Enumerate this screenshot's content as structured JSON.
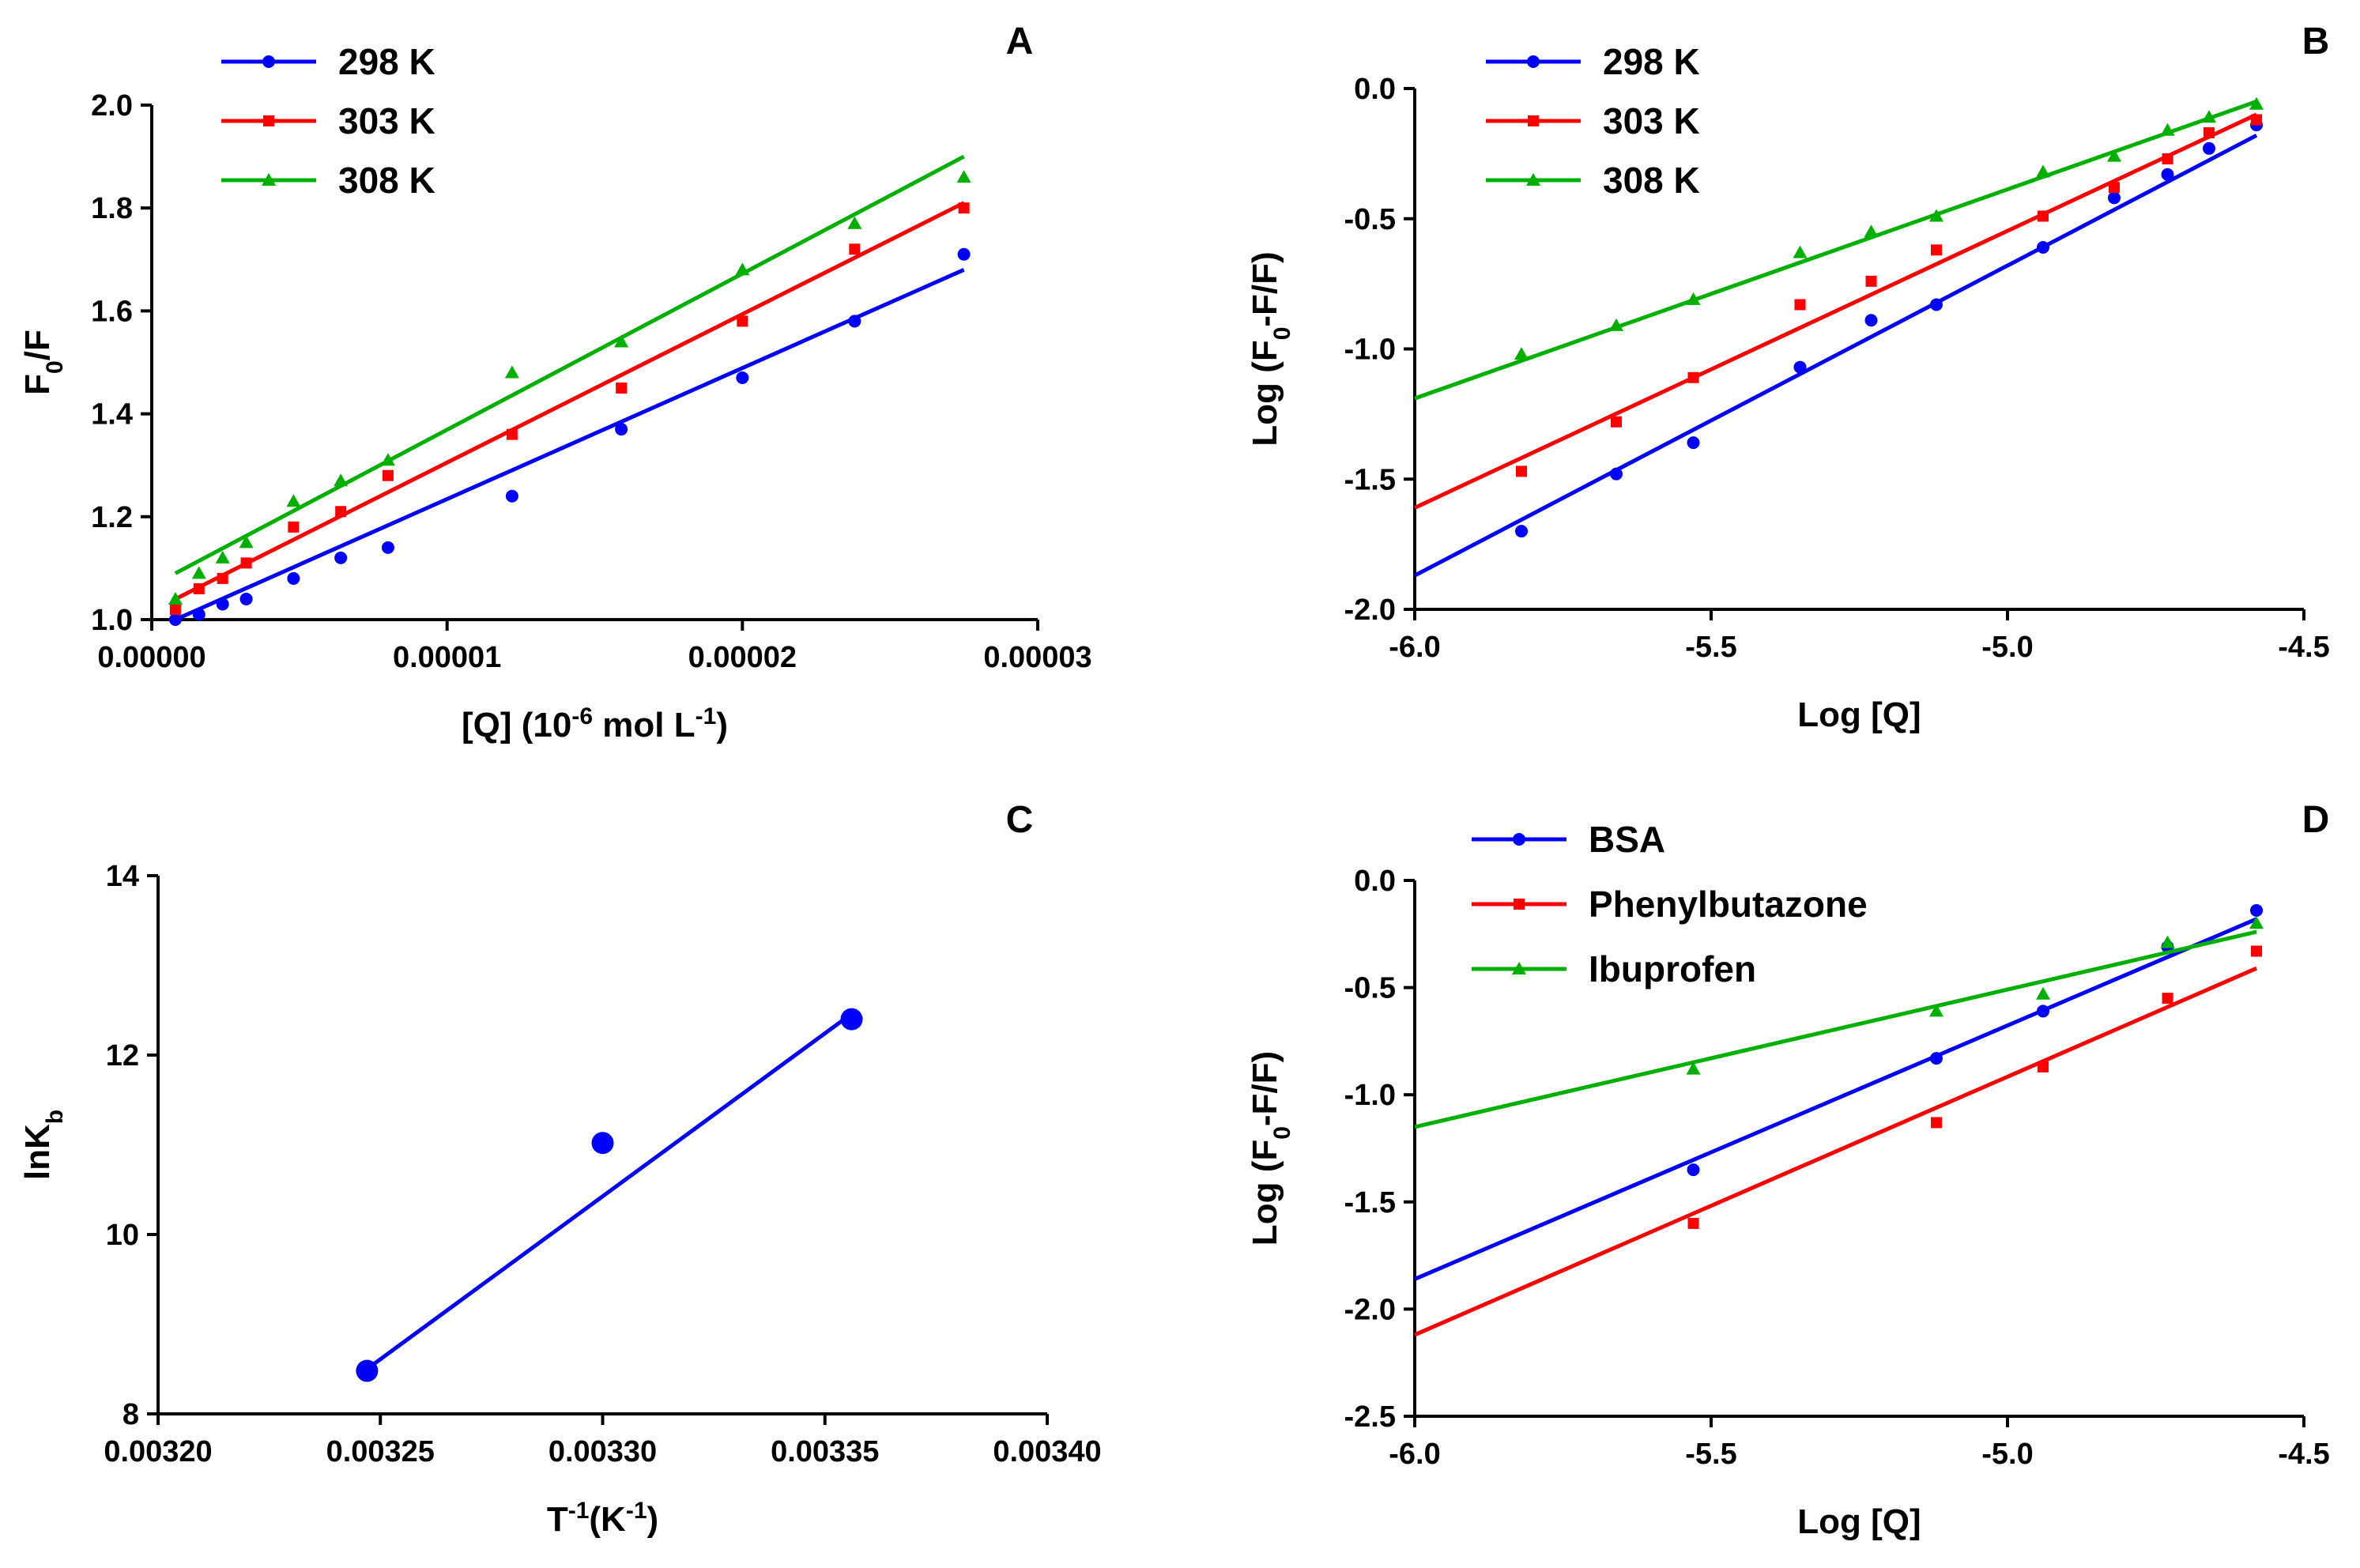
{
  "figure": {
    "panels": [
      "A",
      "B",
      "C",
      "D"
    ]
  },
  "chart_data": [
    {
      "panel": "A",
      "type": "scatter",
      "title": "A",
      "xlabel_parts": {
        "pre": "[Q] (10",
        "sup1": "-6",
        "mid": " mol L",
        "sup2": "-1",
        "post": ")"
      },
      "ylabel_parts": {
        "pre": "F",
        "sub": "0",
        "post": "/F"
      },
      "xlim": [
        0,
        3e-05
      ],
      "ylim": [
        1.0,
        2.0
      ],
      "xticks": [
        0,
        1e-05,
        2e-05,
        3e-05
      ],
      "xtick_labels": [
        "0.00000",
        "0.00001",
        "0.00002",
        "0.00003"
      ],
      "yticks": [
        1.0,
        1.2,
        1.4,
        1.6,
        1.8,
        2.0
      ],
      "ytick_labels": [
        "1.0",
        "1.2",
        "1.4",
        "1.6",
        "1.8",
        "2.0"
      ],
      "legend": "top-left",
      "series": [
        {
          "name": "298 K",
          "color": "#0000ff",
          "marker": "circle",
          "x": [
            8e-07,
            1.6e-06,
            2.4e-06,
            3.2e-06,
            4.8e-06,
            6.4e-06,
            8e-06,
            1.22e-05,
            1.59e-05,
            2e-05,
            2.38e-05,
            2.75e-05
          ],
          "y": [
            1.0,
            1.01,
            1.03,
            1.04,
            1.08,
            1.12,
            1.14,
            1.24,
            1.37,
            1.47,
            1.58,
            1.71
          ],
          "fit": [
            [
              8e-07,
              1.0
            ],
            [
              2.75e-05,
              1.68
            ]
          ]
        },
        {
          "name": "303 K",
          "color": "#ff0000",
          "marker": "square",
          "x": [
            8e-07,
            1.6e-06,
            2.4e-06,
            3.2e-06,
            4.8e-06,
            6.4e-06,
            8e-06,
            1.22e-05,
            1.59e-05,
            2e-05,
            2.38e-05,
            2.75e-05
          ],
          "y": [
            1.02,
            1.06,
            1.08,
            1.11,
            1.18,
            1.21,
            1.28,
            1.36,
            1.45,
            1.58,
            1.72,
            1.8
          ],
          "fit": [
            [
              8e-07,
              1.04
            ],
            [
              2.75e-05,
              1.81
            ]
          ]
        },
        {
          "name": "308 K",
          "color": "#00b000",
          "marker": "triangle",
          "x": [
            8e-07,
            1.6e-06,
            2.4e-06,
            3.2e-06,
            4.8e-06,
            6.4e-06,
            8e-06,
            1.22e-05,
            1.59e-05,
            2e-05,
            2.38e-05,
            2.75e-05
          ],
          "y": [
            1.04,
            1.09,
            1.12,
            1.15,
            1.23,
            1.27,
            1.31,
            1.48,
            1.54,
            1.68,
            1.77,
            1.86
          ],
          "fit": [
            [
              8e-07,
              1.09
            ],
            [
              2.75e-05,
              1.9
            ]
          ]
        }
      ]
    },
    {
      "panel": "B",
      "type": "scatter",
      "title": "B",
      "xlabel": "Log [Q]",
      "ylabel_parts": {
        "pre": "Log (F",
        "sub": "0",
        "post": "-F/F)"
      },
      "xlim": [
        -6.0,
        -4.5
      ],
      "ylim": [
        -2.0,
        0.0
      ],
      "xticks": [
        -6.0,
        -5.5,
        -5.0,
        -4.5
      ],
      "xtick_labels": [
        "-6.0",
        "-5.5",
        "-5.0",
        "-4.5"
      ],
      "yticks": [
        -2.0,
        -1.5,
        -1.0,
        -0.5,
        0.0
      ],
      "ytick_labels": [
        "-2.0",
        "-1.5",
        "-1.0",
        "-0.5",
        "0.0"
      ],
      "legend": "top-left",
      "series": [
        {
          "name": "298 K",
          "color": "#0000ff",
          "marker": "circle",
          "x": [
            -5.82,
            -5.66,
            -5.53,
            -5.35,
            -5.23,
            -5.12,
            -4.94,
            -4.82,
            -4.73,
            -4.66,
            -4.58
          ],
          "y": [
            -1.7,
            -1.48,
            -1.36,
            -1.07,
            -0.89,
            -0.83,
            -0.61,
            -0.42,
            -0.33,
            -0.23,
            -0.14
          ],
          "fit": [
            [
              -6.0,
              -1.87
            ],
            [
              -4.58,
              -0.18
            ]
          ]
        },
        {
          "name": "303 K",
          "color": "#ff0000",
          "marker": "square",
          "x": [
            -5.82,
            -5.66,
            -5.53,
            -5.35,
            -5.23,
            -5.12,
            -4.94,
            -4.82,
            -4.73,
            -4.66,
            -4.58
          ],
          "y": [
            -1.47,
            -1.28,
            -1.11,
            -0.83,
            -0.74,
            -0.62,
            -0.49,
            -0.38,
            -0.27,
            -0.17,
            -0.12
          ],
          "fit": [
            [
              -6.0,
              -1.61
            ],
            [
              -4.58,
              -0.1
            ]
          ]
        },
        {
          "name": "308 K",
          "color": "#00b000",
          "marker": "triangle",
          "x": [
            -5.82,
            -5.66,
            -5.53,
            -5.35,
            -5.23,
            -5.12,
            -4.94,
            -4.82,
            -4.73,
            -4.66,
            -4.58
          ],
          "y": [
            -1.02,
            -0.91,
            -0.81,
            -0.63,
            -0.55,
            -0.49,
            -0.32,
            -0.26,
            -0.16,
            -0.11,
            -0.06
          ],
          "fit": [
            [
              -6.0,
              -1.19
            ],
            [
              -4.58,
              -0.05
            ]
          ]
        }
      ]
    },
    {
      "panel": "C",
      "type": "scatter",
      "title": "C",
      "xlabel_parts": {
        "pre": "T",
        "sup1": "-1",
        "mid": "(K",
        "sup2": "-1",
        "post": ")"
      },
      "ylabel_parts": {
        "pre": "lnK",
        "sub": "b",
        "post": ""
      },
      "xlim": [
        0.0032,
        0.0034
      ],
      "ylim": [
        8,
        14
      ],
      "xticks": [
        0.0032,
        0.00325,
        0.0033,
        0.00335,
        0.0034
      ],
      "xtick_labels": [
        "0.00320",
        "0.00325",
        "0.00330",
        "0.00335",
        "0.00340"
      ],
      "yticks": [
        8,
        10,
        12,
        14
      ],
      "ytick_labels": [
        "8",
        "10",
        "12",
        "14"
      ],
      "legend": "none",
      "series": [
        {
          "name": "lnKb",
          "color": "#0000ff",
          "marker": "circle-large",
          "x": [
            0.003247,
            0.0033,
            0.003356
          ],
          "y": [
            8.48,
            11.02,
            12.4
          ],
          "fit": [
            [
              0.003247,
              8.5
            ],
            [
              0.003356,
              12.46
            ]
          ]
        }
      ]
    },
    {
      "panel": "D",
      "type": "scatter",
      "title": "D",
      "xlabel": "Log [Q]",
      "ylabel_parts": {
        "pre": "Log (F",
        "sub": "0",
        "post": "-F/F)"
      },
      "xlim": [
        -6.0,
        -4.5
      ],
      "ylim": [
        -2.5,
        0.0
      ],
      "xticks": [
        -6.0,
        -5.5,
        -5.0,
        -4.5
      ],
      "xtick_labels": [
        "-6.0",
        "-5.5",
        "-5.0",
        "-4.5"
      ],
      "yticks": [
        -2.5,
        -2.0,
        -1.5,
        -1.0,
        -0.5,
        0.0
      ],
      "ytick_labels": [
        "-2.5",
        "-2.0",
        "-1.5",
        "-1.0",
        "-0.5",
        "0.0"
      ],
      "legend": "top-left",
      "series": [
        {
          "name": "BSA",
          "color": "#0000ff",
          "marker": "circle",
          "x": [
            -5.53,
            -5.12,
            -4.94,
            -4.73,
            -4.58
          ],
          "y": [
            -1.35,
            -0.83,
            -0.61,
            -0.31,
            -0.14
          ],
          "fit": [
            [
              -6.0,
              -1.86
            ],
            [
              -4.58,
              -0.18
            ]
          ]
        },
        {
          "name": "Phenylbutazone",
          "color": "#ff0000",
          "marker": "square",
          "x": [
            -5.53,
            -5.12,
            -4.94,
            -4.73,
            -4.58
          ],
          "y": [
            -1.6,
            -1.13,
            -0.87,
            -0.55,
            -0.33
          ],
          "fit": [
            [
              -6.0,
              -2.12
            ],
            [
              -4.58,
              -0.41
            ]
          ]
        },
        {
          "name": "Ibuprofen",
          "color": "#00b000",
          "marker": "triangle",
          "x": [
            -5.53,
            -5.12,
            -4.94,
            -4.73,
            -4.58
          ],
          "y": [
            -0.88,
            -0.61,
            -0.53,
            -0.29,
            -0.2
          ],
          "fit": [
            [
              -6.0,
              -1.15
            ],
            [
              -4.58,
              -0.24
            ]
          ]
        }
      ]
    }
  ]
}
